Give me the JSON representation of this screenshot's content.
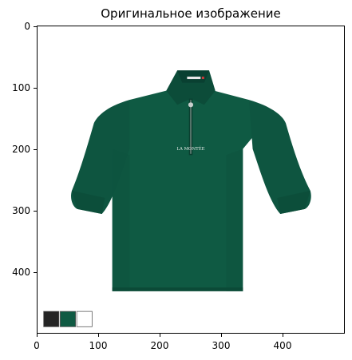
{
  "figure": {
    "title": "Оригинальное изображение",
    "x_ticks": [
      "0",
      "100",
      "200",
      "300",
      "400"
    ],
    "y_ticks": [
      "0",
      "100",
      "200",
      "300",
      "400"
    ],
    "x_tick_values": [
      0,
      100,
      200,
      300,
      400
    ],
    "y_tick_values": [
      0,
      100,
      200,
      300,
      400
    ],
    "image_size": [
      500,
      500
    ]
  },
  "image": {
    "subject": "green-long-sleeve-polo-shirt",
    "brand_text": "LA MONTÉE",
    "shirt_color": "#0f5a43",
    "palette": [
      "#252525",
      "#0f5a43",
      "#ffffff"
    ]
  }
}
